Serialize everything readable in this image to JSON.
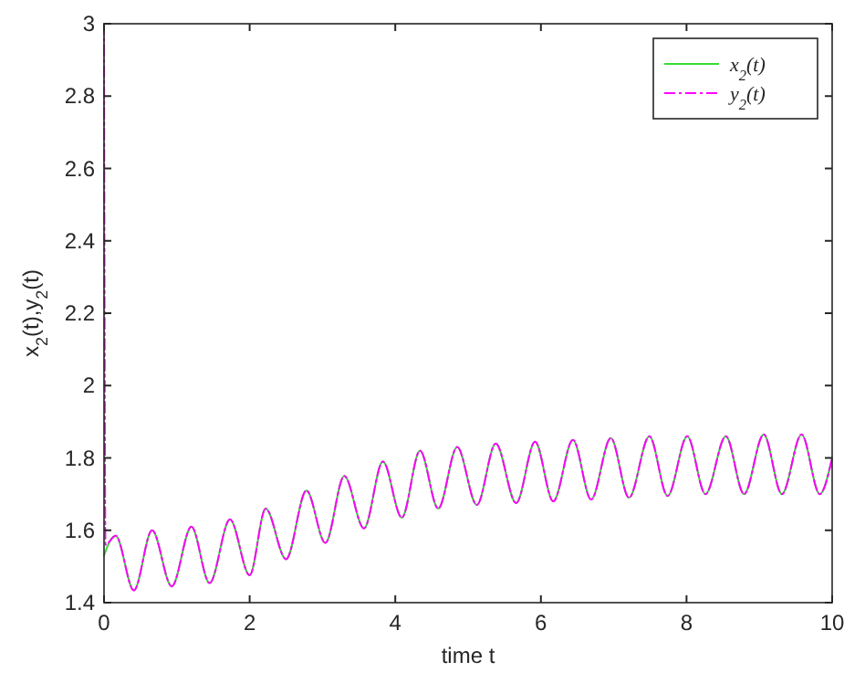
{
  "chart_data": {
    "type": "line",
    "xlabel": "time t",
    "ylabel": "x$_{2}$(t),y$_{2}$(t)",
    "xlim": [
      0,
      10
    ],
    "xticks": [
      0,
      2,
      4,
      6,
      8,
      10
    ],
    "ylim": [
      1.4,
      3
    ],
    "yticks": [
      1.4,
      1.6,
      1.8,
      2,
      2.2,
      2.4,
      2.6,
      2.8,
      3
    ],
    "grid": false,
    "legend": "top right",
    "marker": "none",
    "series": [
      {
        "name": "x$_{2}$(t)",
        "color": "#33dd33",
        "line_style": "solid",
        "x": [
          0,
          0.08,
          0.16,
          0.41,
          0.66,
          0.93,
          1.2,
          1.45,
          1.73,
          2.0,
          2.22,
          2.5,
          2.78,
          3.04,
          3.3,
          3.57,
          3.83,
          4.09,
          4.34,
          4.59,
          4.85,
          5.12,
          5.38,
          5.66,
          5.92,
          6.17,
          6.44,
          6.69,
          6.96,
          7.21,
          7.49,
          7.74,
          8.01,
          8.26,
          8.54,
          8.79,
          9.06,
          9.31,
          9.58,
          9.83,
          10
        ],
        "values": [
          1.53,
          1.57,
          1.585,
          1.434,
          1.6,
          1.445,
          1.61,
          1.454,
          1.63,
          1.476,
          1.66,
          1.52,
          1.71,
          1.565,
          1.75,
          1.605,
          1.79,
          1.635,
          1.82,
          1.66,
          1.83,
          1.67,
          1.84,
          1.675,
          1.845,
          1.68,
          1.85,
          1.685,
          1.855,
          1.69,
          1.86,
          1.695,
          1.86,
          1.7,
          1.86,
          1.7,
          1.865,
          1.7,
          1.865,
          1.7,
          1.8
        ]
      },
      {
        "name": "y$_{2}$(t)",
        "color": "#ff00ff",
        "line_style": "dashed",
        "x": [
          0,
          0.02,
          0.16,
          0.41,
          0.66,
          0.93,
          1.2,
          1.45,
          1.73,
          2.0,
          2.22,
          2.5,
          2.78,
          3.04,
          3.3,
          3.57,
          3.83,
          4.09,
          4.34,
          4.59,
          4.85,
          5.12,
          5.38,
          5.66,
          5.92,
          6.17,
          6.44,
          6.69,
          6.96,
          7.21,
          7.49,
          7.74,
          8.01,
          8.26,
          8.54,
          8.79,
          9.06,
          9.31,
          9.58,
          9.83,
          10
        ],
        "values": [
          3,
          1.56,
          1.585,
          1.434,
          1.6,
          1.445,
          1.61,
          1.454,
          1.63,
          1.476,
          1.66,
          1.52,
          1.71,
          1.565,
          1.75,
          1.605,
          1.79,
          1.635,
          1.82,
          1.66,
          1.83,
          1.67,
          1.84,
          1.675,
          1.845,
          1.68,
          1.85,
          1.685,
          1.855,
          1.69,
          1.86,
          1.695,
          1.86,
          1.7,
          1.86,
          1.7,
          1.865,
          1.7,
          1.865,
          1.7,
          1.8
        ]
      }
    ]
  }
}
